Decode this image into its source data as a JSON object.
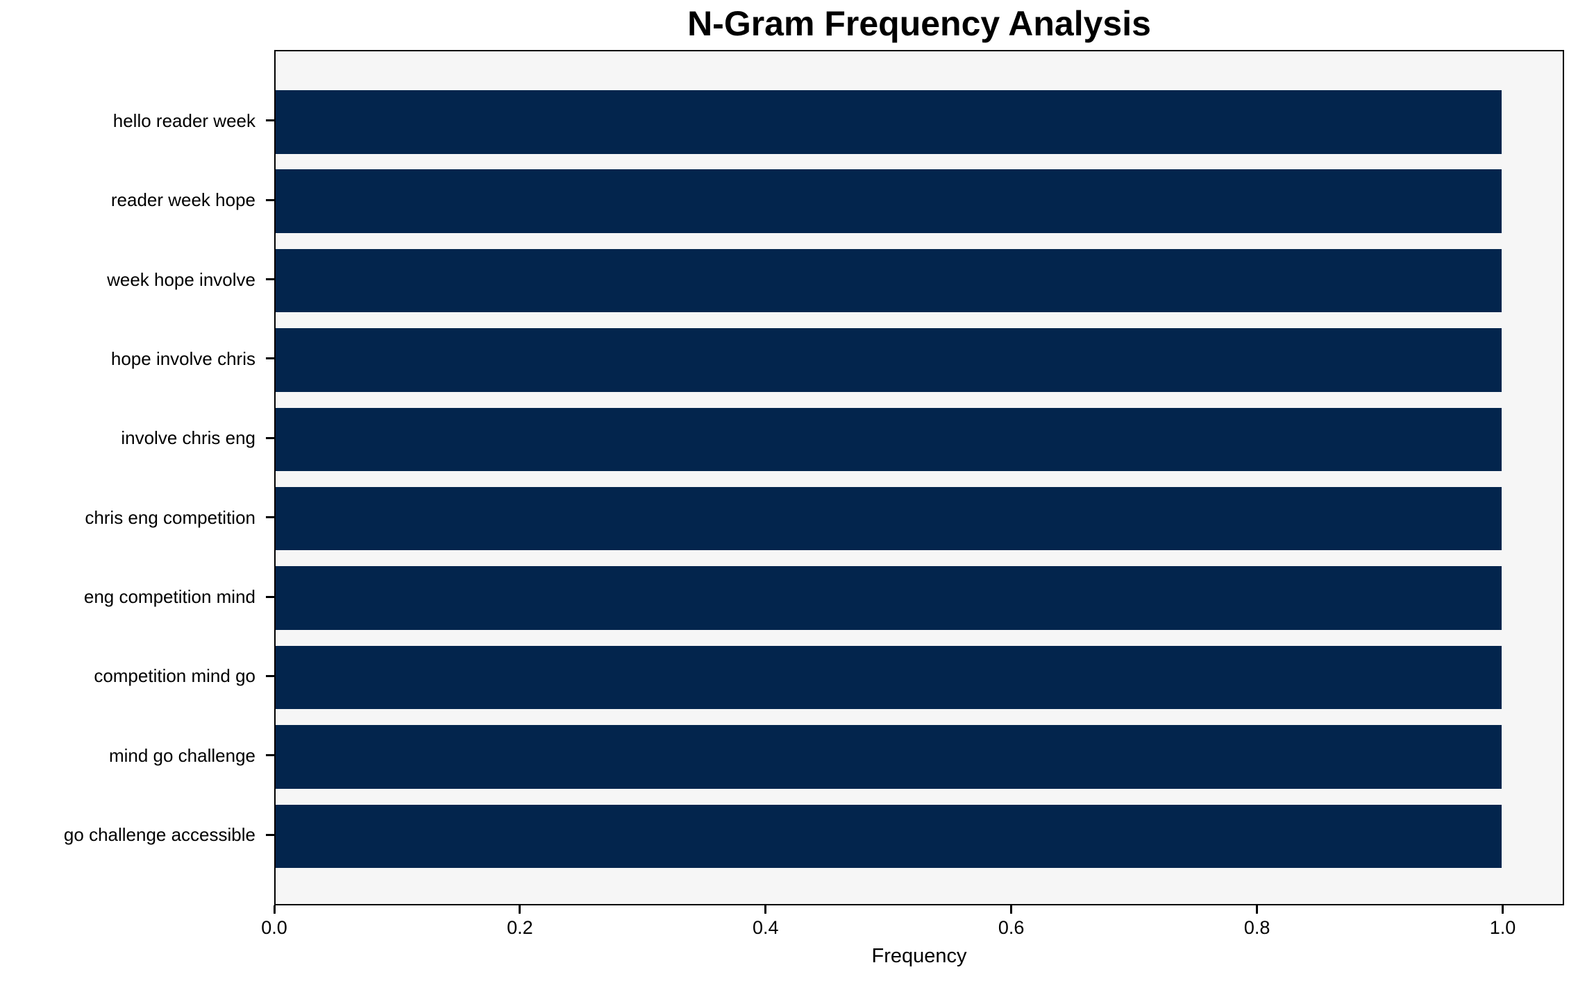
{
  "chart_data": {
    "type": "bar",
    "orientation": "horizontal",
    "title": "N-Gram Frequency Analysis",
    "xlabel": "Frequency",
    "ylabel": "",
    "categories": [
      "hello reader week",
      "reader week hope",
      "week hope involve",
      "hope involve chris",
      "involve chris eng",
      "chris eng competition",
      "eng competition mind",
      "competition mind go",
      "mind go challenge",
      "go challenge accessible"
    ],
    "values": [
      1.0,
      1.0,
      1.0,
      1.0,
      1.0,
      1.0,
      1.0,
      1.0,
      1.0,
      1.0
    ],
    "x_ticks": [
      0.0,
      0.2,
      0.4,
      0.6,
      0.8,
      1.0
    ],
    "x_tick_labels": [
      "0.0",
      "0.2",
      "0.4",
      "0.6",
      "0.8",
      "1.0"
    ],
    "xlim": [
      0,
      1.05
    ],
    "grid": false,
    "legend": false,
    "colors": {
      "bar": "#03254D",
      "plot_background": "#f6f6f6",
      "figure_background": "#ffffff",
      "axis": "#000000",
      "text": "#000000"
    }
  }
}
